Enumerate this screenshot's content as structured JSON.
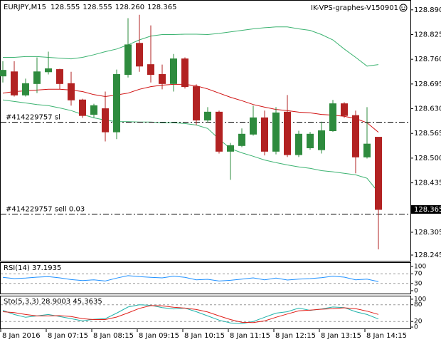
{
  "header": {
    "symbol": "EURJPY,M15",
    "quote": [
      "128.555",
      "128.555",
      "128.260",
      "128.365"
    ],
    "expert": "IK-VPS-graphes-V150901"
  },
  "chart_data": [
    {
      "type": "candlestick",
      "categories": [
        "8 Jan 2016",
        null,
        null,
        null,
        "8 Jan 07:15",
        null,
        null,
        null,
        "8 Jan 08:15",
        null,
        null,
        null,
        "8 Jan 09:15",
        null,
        null,
        null,
        "8 Jan 10:15",
        null,
        null,
        null,
        "8 Jan 11:15",
        null,
        null,
        null,
        "8 Jan 12:15",
        null,
        null,
        null,
        "8 Jan 13:15",
        null,
        null,
        null,
        "8 Jan 14:15",
        null
      ],
      "open": [
        128.716,
        128.727,
        128.666,
        128.696,
        128.727,
        128.733,
        128.696,
        128.653,
        128.615,
        128.63,
        128.569,
        128.72,
        128.802,
        128.746,
        128.72,
        128.696,
        128.761,
        128.688,
        128.6,
        128.621,
        128.518,
        128.533,
        128.563,
        128.606,
        128.518,
        128.621,
        128.509,
        128.527,
        128.522,
        128.572,
        128.643,
        128.612,
        128.503,
        128.555
      ],
      "high": [
        128.755,
        128.755,
        128.709,
        128.765,
        128.78,
        128.735,
        128.727,
        128.656,
        128.643,
        128.675,
        128.733,
        128.868,
        128.877,
        128.849,
        128.746,
        128.774,
        128.765,
        128.694,
        128.634,
        128.625,
        128.54,
        128.578,
        128.638,
        128.625,
        128.634,
        128.666,
        128.572,
        128.569,
        128.596,
        128.653,
        128.647,
        128.625,
        128.634,
        128.555
      ],
      "low": [
        128.699,
        128.662,
        128.662,
        128.671,
        128.72,
        128.681,
        128.638,
        128.606,
        128.606,
        128.544,
        128.55,
        128.712,
        128.727,
        128.699,
        128.681,
        128.675,
        128.683,
        128.587,
        128.593,
        128.512,
        128.443,
        128.529,
        128.559,
        128.507,
        128.51,
        128.503,
        128.503,
        128.522,
        128.512,
        128.569,
        128.606,
        128.46,
        128.499,
        128.26
      ],
      "close": [
        128.731,
        128.666,
        128.696,
        128.727,
        128.735,
        128.696,
        128.653,
        128.612,
        128.638,
        128.569,
        128.72,
        128.798,
        128.742,
        128.72,
        128.696,
        128.761,
        128.688,
        128.6,
        128.621,
        128.518,
        128.533,
        128.563,
        128.606,
        128.518,
        128.619,
        128.509,
        128.563,
        128.563,
        128.572,
        128.643,
        128.612,
        128.503,
        128.537,
        128.365
      ],
      "up_color": "#2e8b3e",
      "down_color": "#b22222",
      "bands": [
        {
          "color": "#3cb371",
          "values": [
            128.765,
            128.765,
            128.767,
            128.767,
            128.765,
            128.763,
            128.761,
            128.765,
            128.772,
            128.78,
            128.787,
            128.798,
            128.811,
            128.821,
            128.825,
            128.825,
            128.826,
            128.826,
            128.825,
            128.828,
            128.832,
            128.836,
            128.84,
            128.843,
            128.845,
            128.845,
            128.84,
            128.836,
            128.825,
            128.811,
            128.787,
            128.765,
            128.742,
            128.746
          ]
        },
        {
          "color": "#d01010",
          "values": [
            128.671,
            128.675,
            128.677,
            128.679,
            128.681,
            128.681,
            128.679,
            128.675,
            128.667,
            128.662,
            128.666,
            128.671,
            128.681,
            128.688,
            128.692,
            128.694,
            128.694,
            128.69,
            128.682,
            128.671,
            128.66,
            128.651,
            128.641,
            128.634,
            128.628,
            128.625,
            128.621,
            128.619,
            128.615,
            128.613,
            128.61,
            128.604,
            128.593,
            128.568
          ]
        },
        {
          "color": "#3cb371",
          "values": [
            128.653,
            128.649,
            128.645,
            128.641,
            128.638,
            128.632,
            128.625,
            128.615,
            128.606,
            128.6,
            128.596,
            128.596,
            128.595,
            128.595,
            128.593,
            128.593,
            128.591,
            128.587,
            128.578,
            128.55,
            128.525,
            128.514,
            128.505,
            128.495,
            128.488,
            128.482,
            128.477,
            128.473,
            128.467,
            128.464,
            128.46,
            128.456,
            128.447,
            128.41
          ]
        }
      ],
      "order_lines": [
        {
          "label": "#414229757 sl",
          "value": 128.596
        },
        {
          "label": "#414229757 sell 0.03",
          "value": 128.353
        }
      ],
      "last_price": 128.365,
      "ylim": [
        128.23,
        128.914
      ],
      "yticks": [
        {
          "value": 128.89,
          "label": "128.890"
        },
        128.825,
        {
          "value": 128.76,
          "label": "128.760"
        },
        128.695,
        {
          "value": 128.63,
          "label": "128.630"
        },
        128.565,
        {
          "value": 128.5,
          "label": "128.500"
        },
        128.435,
        128.305,
        128.245
      ]
    },
    {
      "type": "line",
      "title": "RSI(14) 37.1935",
      "series": [
        {
          "color": "#1e90ff",
          "values": [
            55,
            50,
            52,
            56,
            58,
            53,
            46,
            42,
            45,
            40,
            52,
            62,
            58,
            55,
            53,
            60,
            55,
            45,
            47,
            40,
            43,
            48,
            53,
            45,
            52,
            44,
            48,
            50,
            54,
            60,
            56,
            45,
            48,
            37.1935
          ]
        }
      ],
      "ylim": [
        -12,
        115
      ],
      "yticks": [
        0,
        30,
        70,
        100
      ],
      "levels": [
        30,
        70
      ]
    },
    {
      "type": "line",
      "title": "Sto(5,3,3) 28.9003 45.3635",
      "series": [
        {
          "color": "#20b2aa",
          "values": [
            60,
            45,
            35,
            40,
            45,
            38,
            30,
            22,
            28,
            30,
            50,
            72,
            80,
            78,
            70,
            65,
            68,
            55,
            40,
            25,
            15,
            12,
            20,
            35,
            50,
            55,
            68,
            60,
            65,
            72,
            70,
            55,
            45,
            28.9003
          ]
        },
        {
          "color": "#e0201a",
          "values": [
            55,
            52,
            45,
            40,
            40,
            41,
            38,
            30,
            27,
            27,
            36,
            51,
            67,
            77,
            76,
            71,
            68,
            63,
            54,
            40,
            27,
            17,
            16,
            22,
            35,
            47,
            58,
            61,
            64,
            66,
            69,
            66,
            57,
            45.3635
          ]
        }
      ],
      "ylim": [
        -5,
        110
      ],
      "yticks": [
        0,
        20,
        80,
        100
      ],
      "levels": [
        20,
        80
      ]
    }
  ]
}
